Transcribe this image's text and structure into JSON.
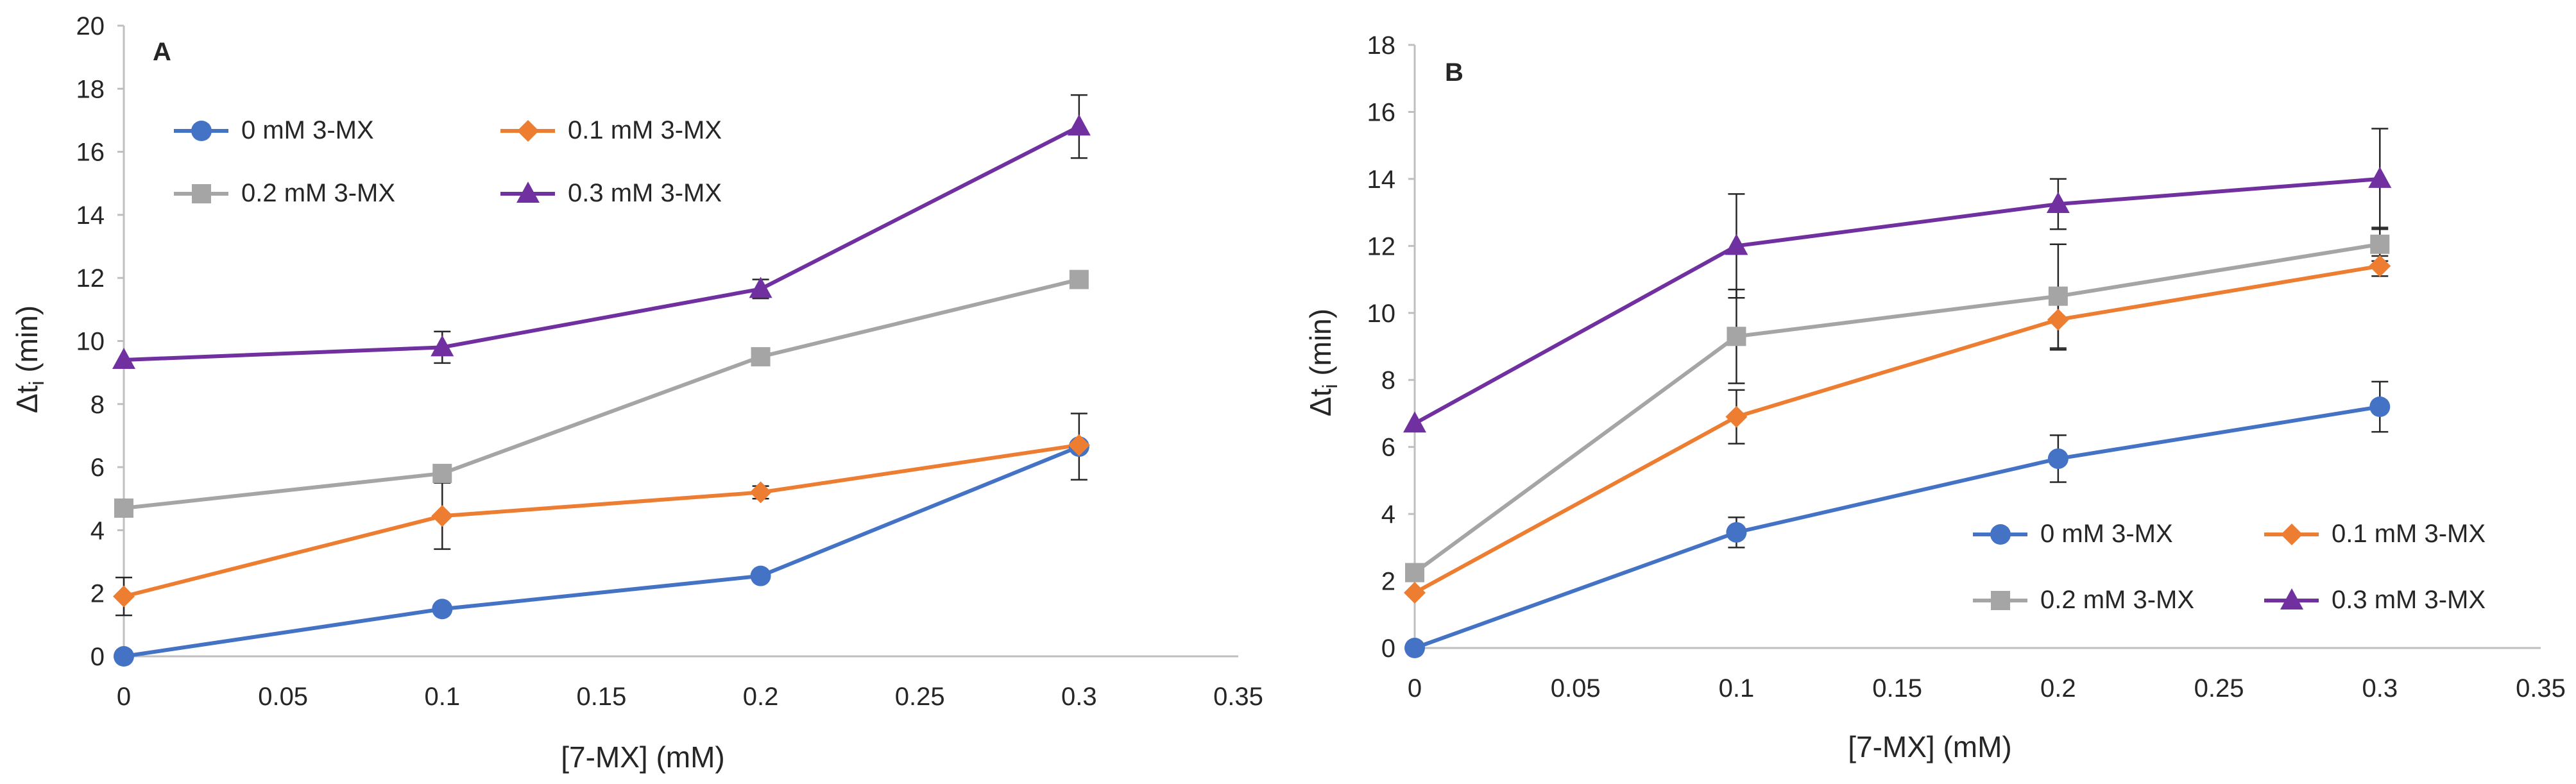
{
  "colors": {
    "s0": "#4472C4",
    "s1": "#ED7D31",
    "s2": "#A5A5A5",
    "s3": "#7030A0",
    "axis": "#bfbfbf",
    "text": "#262626",
    "errorbar": "#262626"
  },
  "chart_data": [
    {
      "type": "line",
      "panel_label": "A",
      "xlabel": "[7-MX] (mM)",
      "ylabel_main": "Δt",
      "ylabel_sub": "i",
      "ylabel_unit": " (min)",
      "xlim": [
        0,
        0.35
      ],
      "ylim": [
        0,
        20
      ],
      "xticks": [
        0,
        0.05,
        0.1,
        0.15,
        0.2,
        0.25,
        0.3,
        0.35
      ],
      "xtick_labels": [
        "0",
        "0.05",
        "0.1",
        "0.15",
        "0.2",
        "0.25",
        "0.3",
        "0.35"
      ],
      "yticks": [
        0,
        2,
        4,
        6,
        8,
        10,
        12,
        14,
        16,
        18,
        20
      ],
      "ytick_labels": [
        "0",
        "2",
        "4",
        "6",
        "8",
        "10",
        "12",
        "14",
        "16",
        "18",
        "20"
      ],
      "grid": false,
      "legend_position": "top-left",
      "x": [
        0,
        0.1,
        0.2,
        0.3
      ],
      "series": [
        {
          "name": "0 mM 3-MX",
          "marker": "circle",
          "values": [
            0.0,
            1.5,
            2.55,
            6.65
          ],
          "errors": [
            0.0,
            0.0,
            0.1,
            1.05
          ]
        },
        {
          "name": "0.1 mM 3-MX",
          "marker": "diamond",
          "values": [
            1.9,
            4.45,
            5.2,
            6.7
          ],
          "errors": [
            0.6,
            1.05,
            0.2,
            0.0
          ]
        },
        {
          "name": "0.2 mM 3-MX",
          "marker": "square",
          "values": [
            4.7,
            5.8,
            9.5,
            11.95
          ],
          "errors": [
            0.0,
            0.0,
            0.0,
            0.0
          ]
        },
        {
          "name": "0.3 mM 3-MX",
          "marker": "triangle",
          "values": [
            9.4,
            9.8,
            11.65,
            16.8
          ],
          "errors": [
            0.0,
            0.5,
            0.3,
            1.0
          ]
        }
      ]
    },
    {
      "type": "line",
      "panel_label": "B",
      "xlabel": "[7-MX] (mM)",
      "ylabel_main": "Δt",
      "ylabel_sub": "i",
      "ylabel_unit": " (min)",
      "xlim": [
        0,
        0.35
      ],
      "ylim": [
        0,
        18
      ],
      "xticks": [
        0,
        0.05,
        0.1,
        0.15,
        0.2,
        0.25,
        0.3,
        0.35
      ],
      "xtick_labels": [
        "0",
        "0.05",
        "0.1",
        "0.15",
        "0.2",
        "0.25",
        "0.3",
        "0.35"
      ],
      "yticks": [
        0,
        2,
        4,
        6,
        8,
        10,
        12,
        14,
        16,
        18
      ],
      "ytick_labels": [
        "0",
        "2",
        "4",
        "6",
        "8",
        "10",
        "12",
        "14",
        "16",
        "18"
      ],
      "grid": false,
      "legend_position": "bottom-right",
      "x": [
        0,
        0.1,
        0.2,
        0.3
      ],
      "series": [
        {
          "name": "0 mM 3-MX",
          "marker": "circle",
          "values": [
            0.0,
            3.45,
            5.65,
            7.2
          ],
          "errors": [
            0.0,
            0.45,
            0.7,
            0.75
          ]
        },
        {
          "name": "0.1 mM 3-MX",
          "marker": "diamond",
          "values": [
            1.65,
            6.9,
            9.8,
            11.4
          ],
          "errors": [
            0.0,
            0.8,
            0.9,
            0.3
          ]
        },
        {
          "name": "0.2 mM 3-MX",
          "marker": "square",
          "values": [
            2.25,
            9.3,
            10.5,
            12.05
          ],
          "errors": [
            0.0,
            1.4,
            1.55,
            0.5
          ]
        },
        {
          "name": "0.3 mM 3-MX",
          "marker": "triangle",
          "values": [
            6.7,
            12.0,
            13.25,
            14.0
          ],
          "errors": [
            0.0,
            1.55,
            0.75,
            1.5
          ]
        }
      ]
    }
  ]
}
